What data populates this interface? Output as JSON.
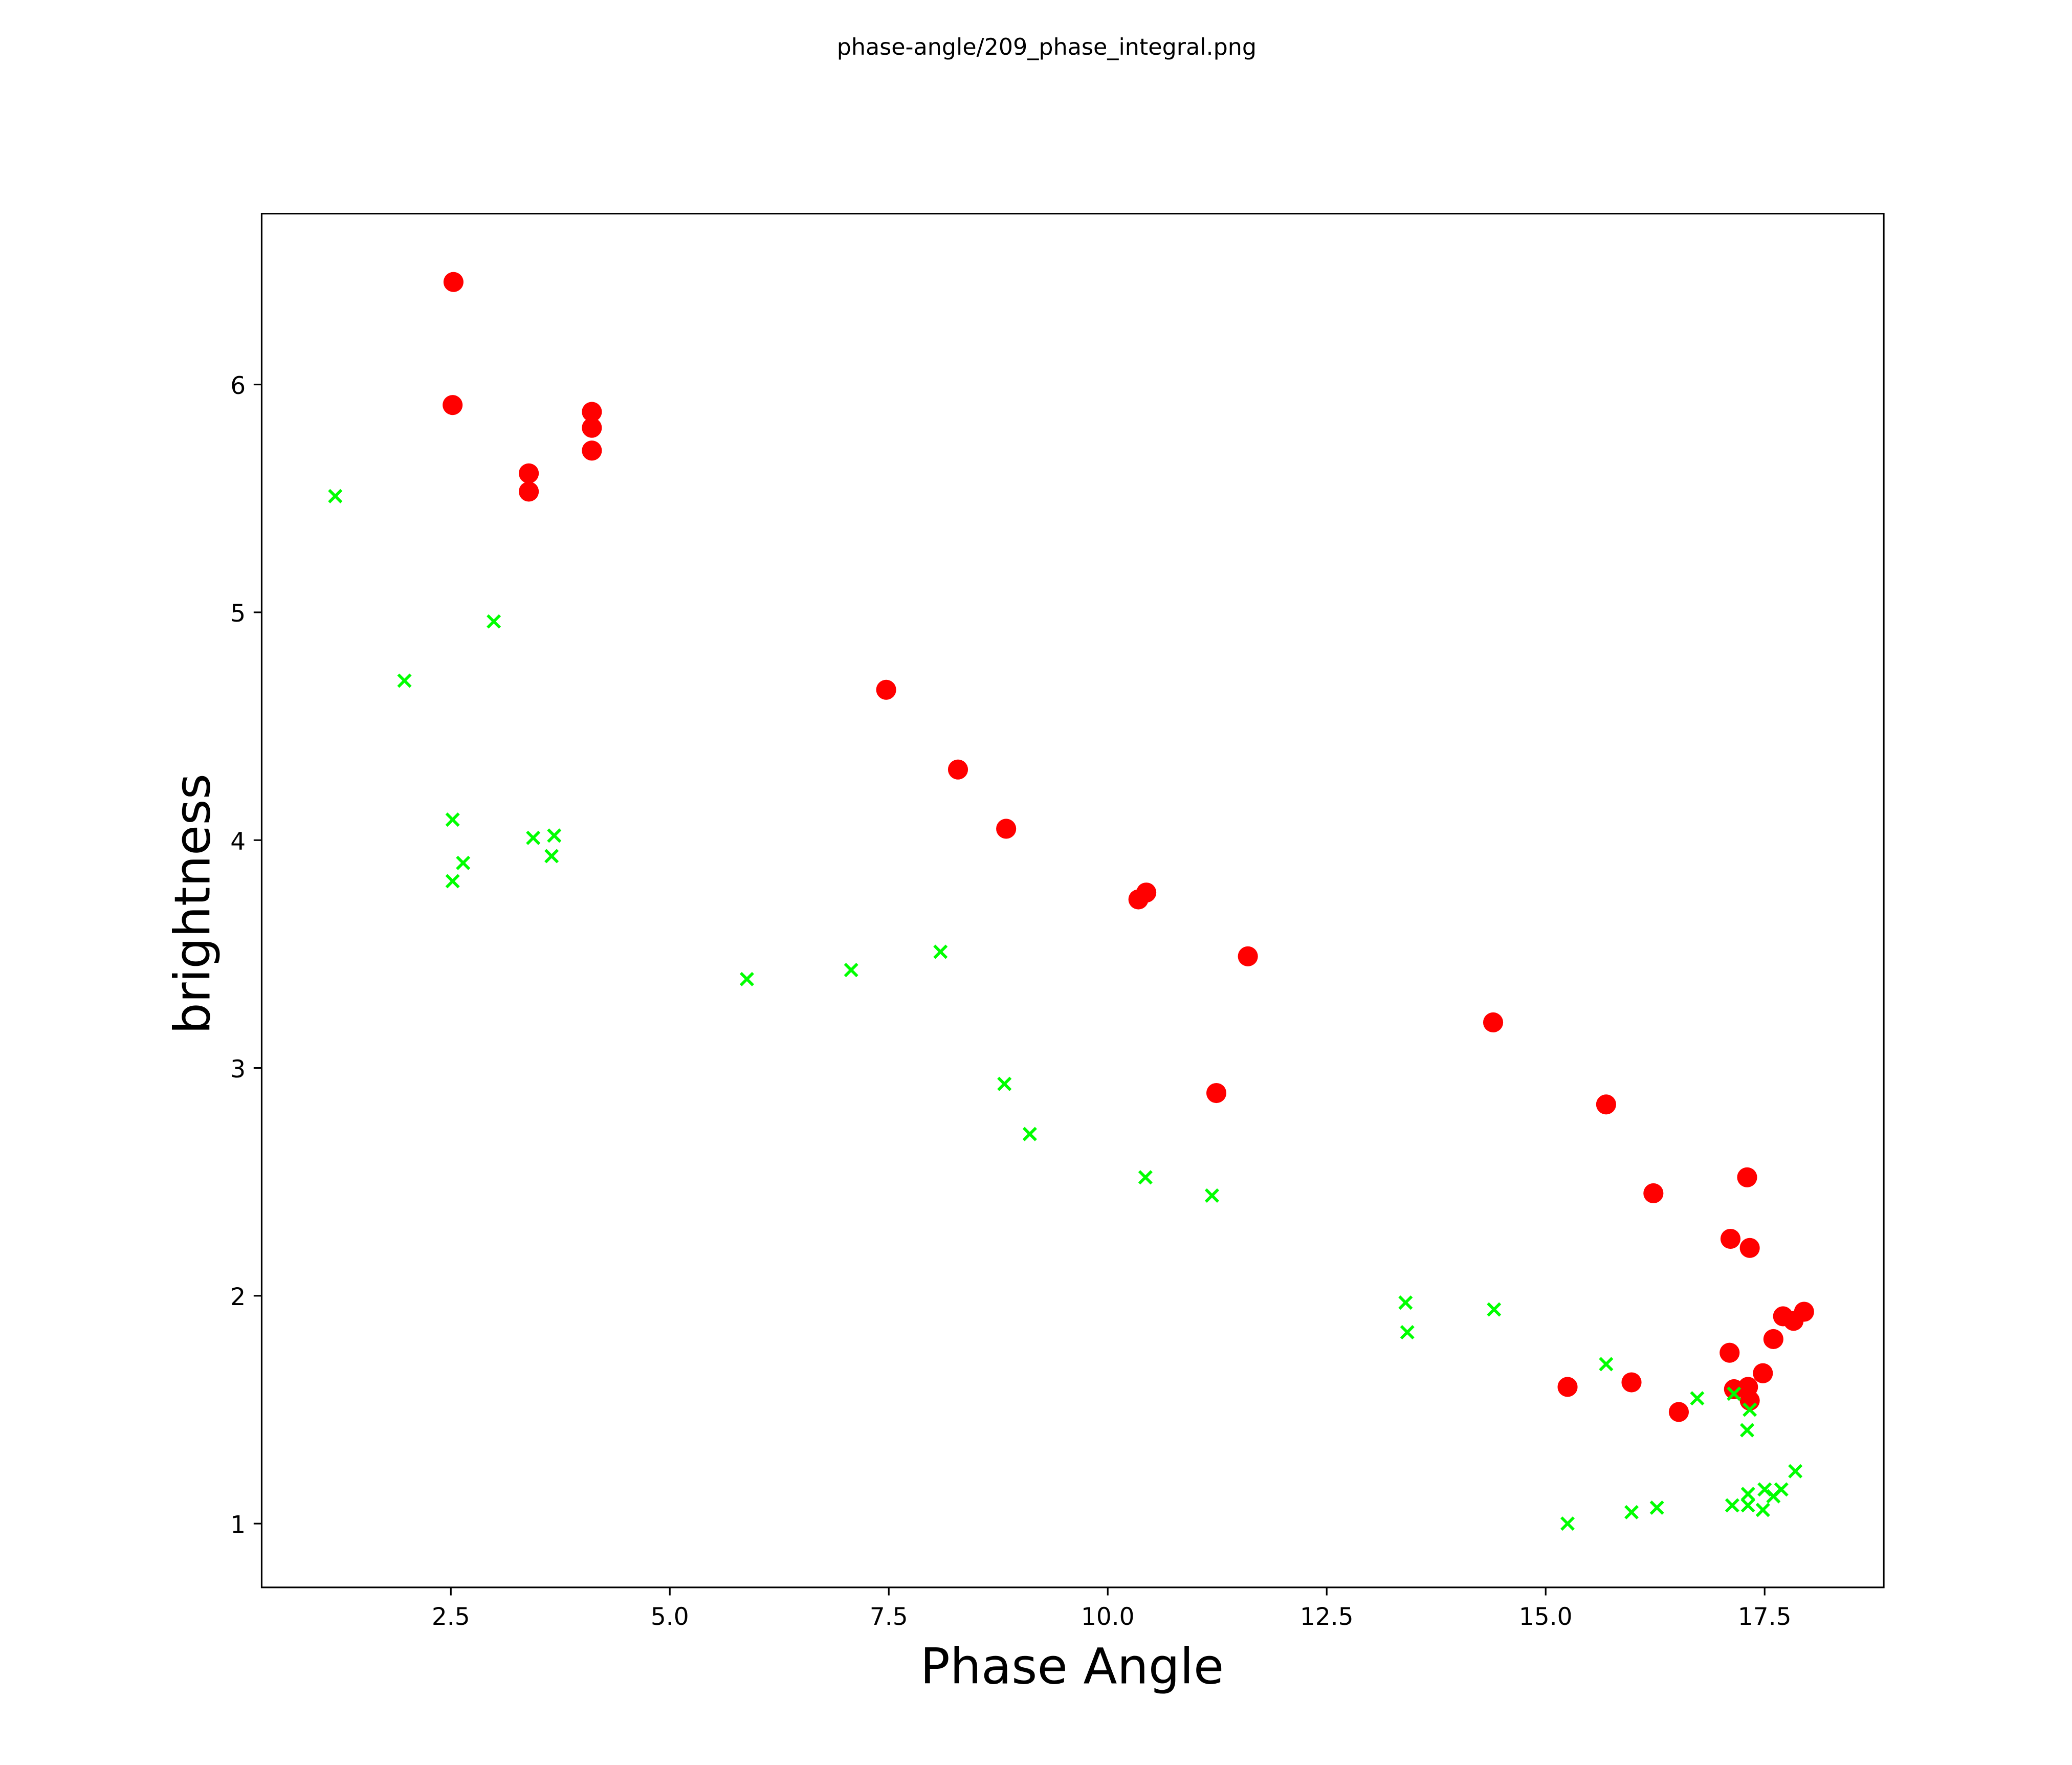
{
  "chart_data": {
    "type": "scatter",
    "title": "phase-angle/209_phase_integral.png",
    "xlabel": "Phase Angle",
    "ylabel": "brightness",
    "xlim": [
      0.34,
      18.86
    ],
    "ylim": [
      0.72,
      6.75
    ],
    "grid": false,
    "xticks": [
      2.5,
      5.0,
      7.5,
      10.0,
      12.5,
      15.0,
      17.5
    ],
    "xtick_labels": [
      "2.5",
      "5.0",
      "7.5",
      "10.0",
      "12.5",
      "15.0",
      "17.5"
    ],
    "yticks": [
      1,
      2,
      3,
      4,
      5,
      6
    ],
    "ytick_labels": [
      "1",
      "2",
      "3",
      "4",
      "5",
      "6"
    ],
    "series": [
      {
        "name": "red-circles",
        "marker": "circle",
        "color": "#ff0000",
        "x": [
          2.53,
          2.52,
          3.39,
          3.39,
          4.11,
          4.11,
          4.11,
          7.47,
          8.29,
          8.84,
          10.35,
          10.44,
          11.6,
          11.24,
          14.4,
          15.69,
          16.23,
          17.3,
          17.11,
          17.33,
          17.71,
          17.83,
          17.95,
          17.6,
          17.1,
          17.48,
          15.25,
          15.98,
          16.52,
          17.15,
          17.31,
          17.33
        ],
        "y": [
          6.45,
          5.91,
          5.61,
          5.53,
          5.88,
          5.81,
          5.71,
          4.66,
          4.31,
          4.05,
          3.74,
          3.77,
          3.49,
          2.89,
          3.2,
          2.84,
          2.45,
          2.52,
          2.25,
          2.21,
          1.91,
          1.89,
          1.93,
          1.81,
          1.75,
          1.66,
          1.6,
          1.62,
          1.49,
          1.59,
          1.6,
          1.54
        ]
      },
      {
        "name": "green-crosses",
        "marker": "x",
        "color": "#00ff00",
        "x": [
          1.18,
          1.97,
          2.99,
          2.52,
          2.64,
          2.52,
          3.44,
          3.68,
          3.65,
          5.88,
          7.07,
          8.09,
          8.82,
          9.11,
          10.43,
          11.19,
          13.4,
          13.42,
          14.41,
          15.69,
          16.73,
          17.15,
          17.33,
          17.3,
          15.25,
          15.98,
          16.27,
          17.13,
          17.31,
          17.31,
          17.48,
          17.5,
          17.6,
          17.69,
          17.85
        ],
        "y": [
          5.51,
          4.7,
          4.96,
          4.09,
          3.9,
          3.82,
          4.01,
          4.02,
          3.93,
          3.39,
          3.43,
          3.51,
          2.93,
          2.71,
          2.52,
          2.44,
          1.97,
          1.84,
          1.94,
          1.7,
          1.55,
          1.57,
          1.5,
          1.41,
          1.0,
          1.05,
          1.07,
          1.08,
          1.13,
          1.08,
          1.06,
          1.15,
          1.12,
          1.15,
          1.23
        ]
      }
    ]
  }
}
